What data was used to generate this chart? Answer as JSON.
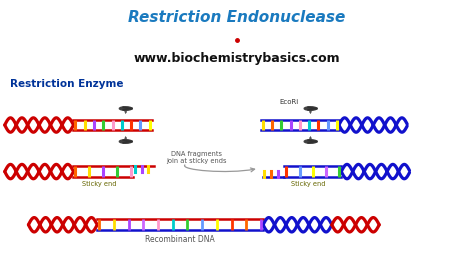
{
  "title": "Restriction Endonuclease",
  "website": "www.biochemistrybasics.com",
  "title_color": "#1a7abf",
  "website_color": "#111111",
  "header_bg": "#f5c4a0",
  "body_bg": "#ffffff",
  "label_restriction_enzyme": "Restriction Enzyme",
  "label_ecori": "EcoRi",
  "label_sticky_end_left": "Sticky end",
  "label_sticky_end_right": "Sticky end",
  "label_dna_fragments": "DNA fragments\njoin at sticky ends",
  "label_recombinant": "Recombinant DNA",
  "red": "#cc0000",
  "blue": "#1111cc",
  "orange": "#dd7700",
  "bar_colors": [
    "#ff6600",
    "#ffdd00",
    "#aa44ff",
    "#33cc33",
    "#ff99cc",
    "#00cccc",
    "#ff3300",
    "#6699ff",
    "#ffff00",
    "#cc66ff",
    "#ff6600",
    "#33cc33"
  ],
  "bar_colors2": [
    "#ffdd00",
    "#ff6600",
    "#33cc33",
    "#aa44ff",
    "#ff99cc",
    "#00cccc",
    "#ff3300",
    "#6699ff",
    "#ffff00"
  ],
  "scissors_color": "#555555",
  "arrow_color": "#888888",
  "label_color": "#666600",
  "annot_color": "#555555"
}
